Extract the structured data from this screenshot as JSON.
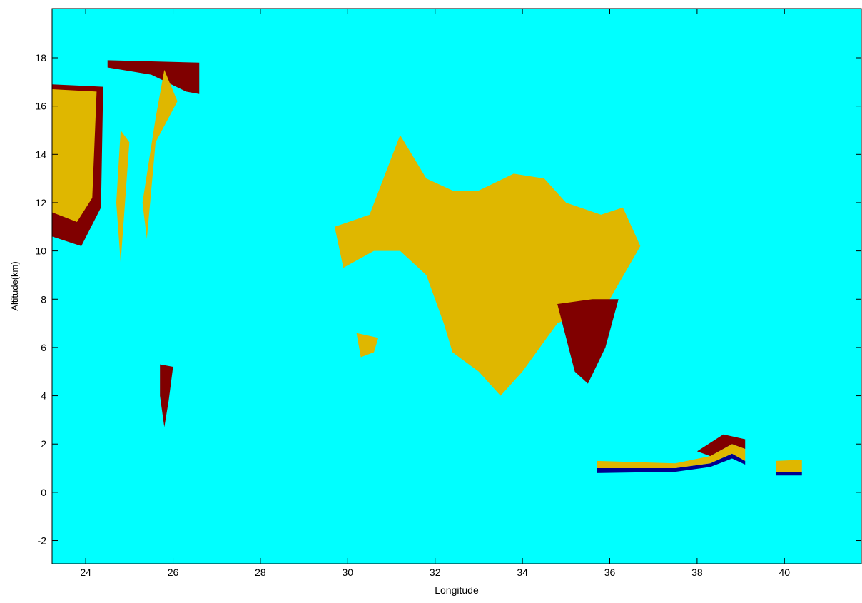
{
  "chart_data": {
    "type": "image",
    "xlabel": "Longitude",
    "ylabel": "Altitude(km)",
    "background": "#00ffff",
    "xlim": [
      23.23,
      41.76
    ],
    "ylim": [
      -2.96,
      20.04
    ],
    "xticks": [
      24,
      26,
      28,
      30,
      32,
      34,
      36,
      38,
      40
    ],
    "yticks": [
      -2,
      0,
      2,
      4,
      6,
      8,
      10,
      12,
      14,
      16,
      18
    ],
    "regions": [
      {
        "color": "#800000",
        "x": [
          23.23,
          24.4,
          24.35,
          23.9,
          23.23
        ],
        "y": [
          16.9,
          16.8,
          11.8,
          10.2,
          10.6
        ]
      },
      {
        "color": "#dfb700",
        "x": [
          23.23,
          24.25,
          24.15,
          23.8,
          23.23
        ],
        "y": [
          16.7,
          16.6,
          12.2,
          11.2,
          11.6
        ]
      },
      {
        "color": "#800000",
        "x": [
          24.5,
          26.6,
          26.6,
          26.3,
          25.5,
          24.5
        ],
        "y": [
          17.9,
          17.8,
          16.5,
          16.6,
          17.3,
          17.6
        ]
      },
      {
        "color": "#dfb700",
        "x": [
          25.8,
          26.1,
          25.6,
          25.4,
          25.3,
          25.6
        ],
        "y": [
          17.5,
          16.2,
          14.5,
          10.5,
          12.0,
          15.5
        ]
      },
      {
        "color": "#dfb700",
        "x": [
          24.8,
          25.0,
          24.8,
          24.7
        ],
        "y": [
          15.0,
          14.5,
          9.5,
          12.0
        ]
      },
      {
        "color": "#dfb700",
        "x": [
          29.7,
          30.5,
          31.2,
          31.8,
          32.4,
          33.0,
          33.8,
          34.5,
          35.0,
          35.8,
          36.3,
          36.7,
          36.0,
          34.8,
          34.0,
          33.5,
          33.0,
          32.4,
          32.2,
          31.8,
          31.2,
          30.6,
          29.9
        ],
        "y": [
          11.0,
          11.5,
          14.8,
          13.0,
          12.5,
          12.5,
          13.2,
          13.0,
          12.0,
          11.5,
          11.8,
          10.2,
          8.0,
          7.0,
          5.0,
          4.0,
          5.0,
          5.8,
          7.0,
          9.0,
          10.0,
          10.0,
          9.3
        ]
      },
      {
        "color": "#800000",
        "x": [
          35.6,
          36.2,
          35.9,
          35.5,
          35.2,
          34.8
        ],
        "y": [
          8.0,
          8.0,
          6.0,
          4.5,
          5.0,
          7.8
        ]
      },
      {
        "color": "#00008f",
        "x": [
          35.7,
          37.5,
          38.3,
          38.8,
          39.1,
          39.1,
          38.8,
          38.3,
          37.5,
          35.7
        ],
        "y": [
          1.0,
          1.0,
          1.2,
          1.6,
          1.3,
          1.15,
          1.4,
          1.05,
          0.85,
          0.8
        ]
      },
      {
        "color": "#dfb700",
        "x": [
          35.7,
          37.5,
          38.3,
          38.8,
          39.1,
          39.1,
          38.8,
          38.3,
          37.5,
          35.7
        ],
        "y": [
          1.3,
          1.2,
          1.5,
          2.0,
          1.8,
          1.3,
          1.6,
          1.2,
          1.0,
          1.0
        ]
      },
      {
        "color": "#800000",
        "x": [
          38.0,
          38.6,
          39.1,
          39.1,
          38.8,
          38.3
        ],
        "y": [
          1.7,
          2.4,
          2.2,
          1.8,
          2.0,
          1.5
        ]
      },
      {
        "color": "#00008f",
        "x": [
          39.8,
          40.4,
          40.4,
          39.8
        ],
        "y": [
          0.85,
          0.85,
          0.7,
          0.7
        ]
      },
      {
        "color": "#dfb700",
        "x": [
          39.8,
          40.4,
          40.4,
          39.8
        ],
        "y": [
          1.3,
          1.35,
          0.85,
          0.85
        ]
      },
      {
        "color": "#dfb700",
        "x": [
          30.2,
          30.7,
          30.6,
          30.3
        ],
        "y": [
          6.6,
          6.4,
          5.8,
          5.6
        ]
      },
      {
        "color": "#800000",
        "x": [
          25.7,
          26.0,
          25.9,
          25.8,
          25.7
        ],
        "y": [
          5.3,
          5.2,
          3.8,
          2.7,
          4.0
        ]
      }
    ]
  }
}
